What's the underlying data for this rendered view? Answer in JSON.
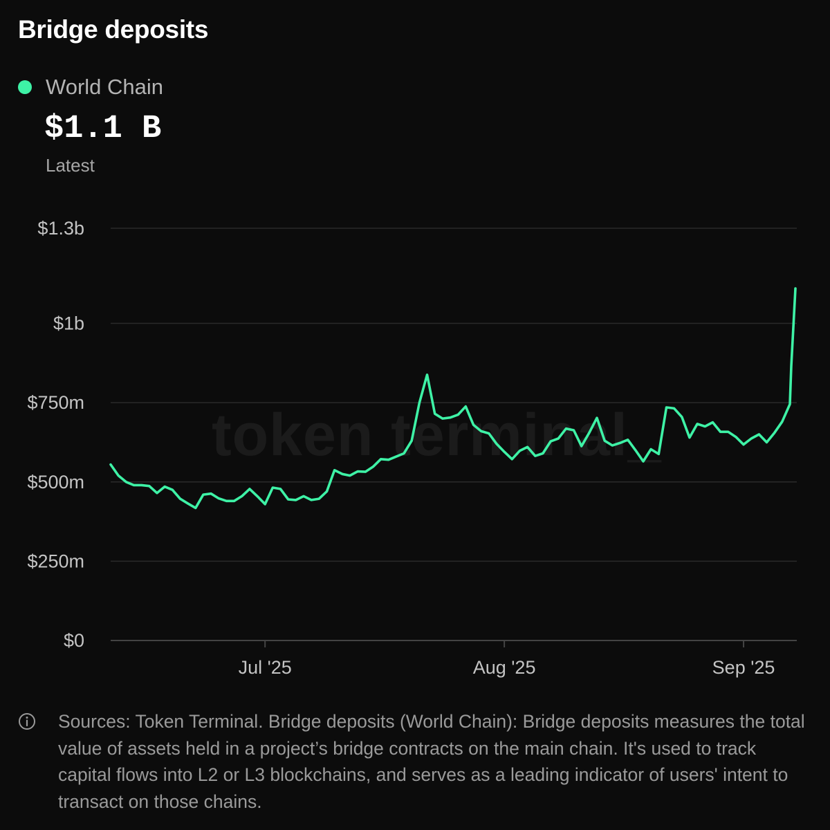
{
  "title": "Bridge deposits",
  "legend": {
    "label": "World Chain",
    "color": "#3ef2a6"
  },
  "latest": {
    "value": "$1.1 B",
    "caption": "Latest"
  },
  "watermark": "token terminal_",
  "footer": {
    "icon": "info-icon",
    "text": "Sources: Token Terminal. Bridge deposits (World Chain): Bridge deposits measures the total value of assets held in a project’s bridge contracts on the main chain. It's used to track capital flows into L2 or L3 blockchains, and serves as a leading indicator of users' intent to transact on those chains."
  },
  "colors": {
    "background": "#0c0c0c",
    "line": "#3ef2a6",
    "grid": "#2a2a2a",
    "axis": "#444444",
    "tick_text": "#c4c4c4"
  },
  "chart_data": {
    "type": "line",
    "title": "Bridge deposits",
    "xlabel": "",
    "ylabel": "",
    "ylim": [
      0,
      1300000000
    ],
    "y_ticks": [
      {
        "value": 0,
        "label": "$0"
      },
      {
        "value": 250000000,
        "label": "$250m"
      },
      {
        "value": 500000000,
        "label": "$500m"
      },
      {
        "value": 750000000,
        "label": "$750m"
      },
      {
        "value": 1000000000,
        "label": "$1b"
      },
      {
        "value": 1300000000,
        "label": "$1.3b"
      }
    ],
    "x_ticks": [
      {
        "date": "2025-07-01",
        "label": "Jul '25"
      },
      {
        "date": "2025-08-01",
        "label": "Aug '25"
      },
      {
        "date": "2025-09-01",
        "label": "Sep '25"
      }
    ],
    "xlim": [
      "2025-06-11",
      "2025-09-07"
    ],
    "grid": true,
    "legend_position": "top-left",
    "series": [
      {
        "name": "World Chain",
        "color": "#3ef2a6",
        "x": [
          "2025-06-11",
          "2025-06-12",
          "2025-06-13",
          "2025-06-14",
          "2025-06-15",
          "2025-06-16",
          "2025-06-17",
          "2025-06-18",
          "2025-06-19",
          "2025-06-20",
          "2025-06-21",
          "2025-06-22",
          "2025-06-23",
          "2025-06-24",
          "2025-06-25",
          "2025-06-26",
          "2025-06-27",
          "2025-06-28",
          "2025-06-29",
          "2025-06-30",
          "2025-07-01",
          "2025-07-02",
          "2025-07-03",
          "2025-07-04",
          "2025-07-05",
          "2025-07-06",
          "2025-07-07",
          "2025-07-08",
          "2025-07-09",
          "2025-07-10",
          "2025-07-11",
          "2025-07-12",
          "2025-07-13",
          "2025-07-14",
          "2025-07-15",
          "2025-07-16",
          "2025-07-17",
          "2025-07-18",
          "2025-07-19",
          "2025-07-20",
          "2025-07-21",
          "2025-07-22",
          "2025-07-23",
          "2025-07-24",
          "2025-07-25",
          "2025-07-26",
          "2025-07-27",
          "2025-07-28",
          "2025-07-29",
          "2025-07-30",
          "2025-07-31",
          "2025-08-01",
          "2025-08-02",
          "2025-08-03",
          "2025-08-04",
          "2025-08-05",
          "2025-08-06",
          "2025-08-07",
          "2025-08-08",
          "2025-08-09",
          "2025-08-10",
          "2025-08-11",
          "2025-08-12",
          "2025-08-13",
          "2025-08-14",
          "2025-08-15",
          "2025-08-16",
          "2025-08-17",
          "2025-08-18",
          "2025-08-19",
          "2025-08-20",
          "2025-08-21",
          "2025-08-22",
          "2025-08-23",
          "2025-08-24",
          "2025-08-25",
          "2025-08-26",
          "2025-08-27",
          "2025-08-28",
          "2025-08-29",
          "2025-08-30",
          "2025-08-31",
          "2025-09-01",
          "2025-09-02",
          "2025-09-03",
          "2025-09-04",
          "2025-09-05",
          "2025-09-06",
          "2025-09-07"
        ],
        "values": [
          555000000,
          520000000,
          500000000,
          490000000,
          490000000,
          487000000,
          465000000,
          485000000,
          475000000,
          447000000,
          432000000,
          418000000,
          460000000,
          463000000,
          448000000,
          440000000,
          440000000,
          455000000,
          478000000,
          455000000,
          430000000,
          482000000,
          478000000,
          445000000,
          443000000,
          455000000,
          443000000,
          447000000,
          470000000,
          537000000,
          525000000,
          520000000,
          533000000,
          532000000,
          548000000,
          572000000,
          570000000,
          580000000,
          590000000,
          630000000,
          750000000,
          838000000,
          715000000,
          700000000,
          703000000,
          712000000,
          738000000,
          680000000,
          660000000,
          653000000,
          620000000,
          595000000,
          572000000,
          598000000,
          610000000,
          582000000,
          590000000,
          628000000,
          637000000,
          668000000,
          663000000,
          613000000,
          655000000,
          702000000,
          630000000,
          615000000,
          623000000,
          633000000,
          600000000,
          565000000,
          603000000,
          588000000,
          735000000,
          732000000,
          705000000,
          640000000,
          683000000,
          675000000,
          688000000,
          658000000,
          658000000,
          642000000,
          618000000,
          637000000,
          650000000,
          625000000,
          655000000,
          690000000,
          745000000
        ]
      }
    ],
    "latest_point": {
      "date": "2025-09-08",
      "value": 1110000000
    }
  }
}
